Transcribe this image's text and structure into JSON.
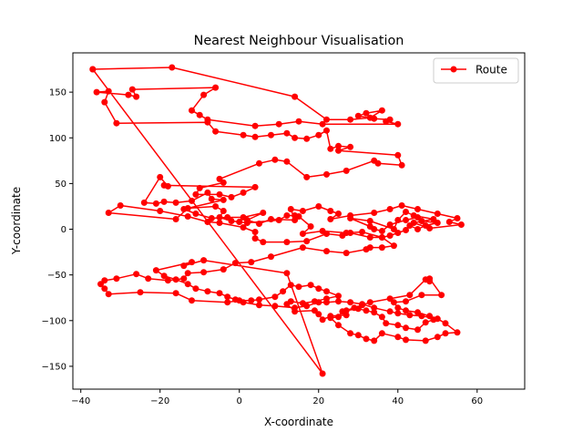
{
  "chart_data": {
    "type": "line",
    "title": "Nearest Neighbour Visualisation",
    "xlabel": "X-coordinate",
    "ylabel": "Y-coordinate",
    "xlim": [
      -42,
      72
    ],
    "ylim": [
      -175,
      193
    ],
    "xticks": [
      -40,
      -20,
      0,
      20,
      40,
      60
    ],
    "yticks": [
      -150,
      -100,
      -50,
      0,
      50,
      100,
      150
    ],
    "grid": false,
    "legend": {
      "position": "top-right",
      "entries": [
        "Route"
      ]
    },
    "series": [
      {
        "name": "Route",
        "color": "#ff0000",
        "marker": "circle",
        "points": [
          [
            -37,
            175
          ],
          [
            -17,
            177
          ],
          [
            14,
            145
          ],
          [
            22,
            120
          ],
          [
            28,
            120
          ],
          [
            33,
            122
          ],
          [
            36,
            130
          ],
          [
            32,
            127
          ],
          [
            30,
            124
          ],
          [
            34,
            121
          ],
          [
            38,
            120
          ],
          [
            37,
            118
          ],
          [
            40,
            115
          ],
          [
            21,
            115
          ],
          [
            15,
            118
          ],
          [
            10,
            115
          ],
          [
            4,
            113
          ],
          [
            -8,
            120
          ],
          [
            -10,
            125
          ],
          [
            -12,
            130
          ],
          [
            -9,
            147
          ],
          [
            -6,
            155
          ],
          [
            -27,
            153
          ],
          [
            -26,
            145
          ],
          [
            -28,
            147
          ],
          [
            -36,
            150
          ],
          [
            -33,
            151
          ],
          [
            -34,
            139
          ],
          [
            -31,
            116
          ],
          [
            -8,
            117
          ],
          [
            -6,
            107
          ],
          [
            1,
            103
          ],
          [
            4,
            101
          ],
          [
            8,
            103
          ],
          [
            12,
            105
          ],
          [
            14,
            100
          ],
          [
            17,
            99
          ],
          [
            20,
            103
          ],
          [
            22,
            108
          ],
          [
            23,
            88
          ],
          [
            25,
            91
          ],
          [
            28,
            90
          ],
          [
            25,
            86
          ],
          [
            40,
            81
          ],
          [
            41,
            70
          ],
          [
            35,
            72
          ],
          [
            34,
            75
          ],
          [
            27,
            64
          ],
          [
            22,
            60
          ],
          [
            17,
            57
          ],
          [
            12,
            74
          ],
          [
            9,
            76
          ],
          [
            5,
            72
          ],
          [
            -5,
            55
          ],
          [
            -4,
            51
          ],
          [
            -10,
            45
          ],
          [
            -11,
            38
          ],
          [
            -5,
            38
          ],
          [
            -2,
            35
          ],
          [
            1,
            40
          ],
          [
            4,
            46
          ],
          [
            -19,
            48
          ],
          [
            -18,
            47
          ],
          [
            -20,
            57
          ],
          [
            -24,
            29
          ],
          [
            -21,
            28
          ],
          [
            -19,
            30
          ],
          [
            -16,
            29
          ],
          [
            -12,
            31
          ],
          [
            -8,
            40
          ],
          [
            -7,
            33
          ],
          [
            -4,
            32
          ],
          [
            -14,
            22
          ],
          [
            -11,
            17
          ],
          [
            -7,
            12
          ],
          [
            -3,
            13
          ],
          [
            1,
            13
          ],
          [
            6,
            18
          ],
          [
            2,
            10
          ],
          [
            5,
            6
          ],
          [
            8,
            11
          ],
          [
            14,
            10
          ],
          [
            13,
            22
          ],
          [
            16,
            20
          ],
          [
            20,
            25
          ],
          [
            23,
            20
          ],
          [
            25,
            17
          ],
          [
            23,
            11
          ],
          [
            28,
            15
          ],
          [
            34,
            18
          ],
          [
            38,
            22
          ],
          [
            41,
            26
          ],
          [
            45,
            22
          ],
          [
            50,
            17
          ],
          [
            55,
            12
          ],
          [
            53,
            8
          ],
          [
            56,
            5
          ],
          [
            48,
            1
          ],
          [
            44,
            7
          ],
          [
            49,
            11
          ],
          [
            44,
            15
          ],
          [
            42,
            19
          ],
          [
            40,
            10
          ],
          [
            39,
            0
          ],
          [
            33,
            9
          ],
          [
            28,
            12
          ],
          [
            33,
            3
          ],
          [
            34,
            0
          ],
          [
            36,
            -2
          ],
          [
            38,
            5
          ],
          [
            42,
            10
          ],
          [
            45,
            13
          ],
          [
            46,
            9
          ],
          [
            50,
            7
          ],
          [
            47,
            4
          ],
          [
            45,
            0
          ],
          [
            43,
            4
          ],
          [
            42,
            -1
          ],
          [
            40,
            -4
          ],
          [
            38,
            -7
          ],
          [
            36,
            -9
          ],
          [
            33,
            -9
          ],
          [
            28,
            -4
          ],
          [
            26,
            -7
          ],
          [
            22,
            -5
          ],
          [
            17,
            -13
          ],
          [
            12,
            -14
          ],
          [
            6,
            -14
          ],
          [
            4,
            -10
          ],
          [
            4,
            -3
          ],
          [
            1,
            2
          ],
          [
            -5,
            7
          ],
          [
            -8,
            8
          ],
          [
            -13,
            14
          ],
          [
            -20,
            20
          ],
          [
            -30,
            26
          ],
          [
            -33,
            18
          ],
          [
            -16,
            11
          ],
          [
            -13,
            23
          ],
          [
            -6,
            25
          ],
          [
            -4,
            20
          ],
          [
            -5,
            13
          ],
          [
            -2,
            9
          ],
          [
            0,
            8
          ],
          [
            2,
            7
          ],
          [
            10,
            10
          ],
          [
            12,
            15
          ],
          [
            14,
            15
          ],
          [
            15,
            14
          ],
          [
            18,
            3
          ],
          [
            16,
            -5
          ],
          [
            21,
            -2
          ],
          [
            27,
            -4
          ],
          [
            31,
            -3
          ],
          [
            36,
            -9
          ],
          [
            39,
            -18
          ],
          [
            36,
            -20
          ],
          [
            33,
            -20
          ],
          [
            32,
            -22
          ],
          [
            27,
            -26
          ],
          [
            22,
            -24
          ],
          [
            16,
            -20
          ],
          [
            8,
            -30
          ],
          [
            3,
            -36
          ],
          [
            -1,
            -37
          ],
          [
            -4,
            -44
          ],
          [
            -9,
            -47
          ],
          [
            -13,
            -48
          ],
          [
            -14,
            -54
          ],
          [
            -18,
            -56
          ],
          [
            -23,
            -54
          ],
          [
            -26,
            -49
          ],
          [
            -31,
            -54
          ],
          [
            -34,
            -56
          ],
          [
            -35,
            -60
          ],
          [
            -34,
            -65
          ],
          [
            -33,
            -71
          ],
          [
            -25,
            -69
          ],
          [
            -16,
            -70
          ],
          [
            -12,
            -78
          ],
          [
            -3,
            -80
          ],
          [
            0,
            -78
          ],
          [
            3,
            -78
          ],
          [
            5,
            -77
          ],
          [
            9,
            -74
          ],
          [
            11,
            -68
          ],
          [
            13,
            -61
          ],
          [
            15,
            -63
          ],
          [
            18,
            -61
          ],
          [
            20,
            -65
          ],
          [
            22,
            -68
          ],
          [
            25,
            -73
          ],
          [
            22,
            -76
          ],
          [
            19,
            -79
          ],
          [
            16,
            -81
          ],
          [
            13,
            -79
          ],
          [
            12,
            -82
          ],
          [
            14,
            -90
          ],
          [
            19,
            -89
          ],
          [
            20,
            -93
          ],
          [
            21,
            -99
          ],
          [
            23,
            -95
          ],
          [
            27,
            -94
          ],
          [
            27,
            -89
          ],
          [
            30,
            -87
          ],
          [
            32,
            -89
          ],
          [
            34,
            -91
          ],
          [
            36,
            -96
          ],
          [
            37,
            -103
          ],
          [
            40,
            -105
          ],
          [
            42,
            -108
          ],
          [
            45,
            -110
          ],
          [
            47,
            -102
          ],
          [
            49,
            -99
          ],
          [
            48,
            -95
          ],
          [
            45,
            -91
          ],
          [
            42,
            -89
          ],
          [
            40,
            -86
          ],
          [
            39,
            -80
          ],
          [
            42,
            -79
          ],
          [
            46,
            -72
          ],
          [
            51,
            -72
          ],
          [
            48,
            -54
          ],
          [
            48,
            -57
          ],
          [
            47,
            -55
          ],
          [
            43,
            -72
          ],
          [
            38,
            -76
          ],
          [
            33,
            -80
          ],
          [
            31,
            -83
          ],
          [
            29,
            -86
          ],
          [
            26,
            -90
          ],
          [
            25,
            -96
          ],
          [
            23,
            -97
          ],
          [
            25,
            -105
          ],
          [
            28,
            -114
          ],
          [
            30,
            -116
          ],
          [
            32,
            -120
          ],
          [
            34,
            -122
          ],
          [
            36,
            -114
          ],
          [
            40,
            -118
          ],
          [
            42,
            -121
          ],
          [
            47,
            -122
          ],
          [
            50,
            -118
          ],
          [
            52,
            -114
          ],
          [
            55,
            -113
          ],
          [
            52,
            -103
          ],
          [
            50,
            -98
          ],
          [
            46,
            -95
          ],
          [
            43,
            -94
          ],
          [
            40,
            -92
          ],
          [
            38,
            -90
          ],
          [
            34,
            -86
          ],
          [
            31,
            -82
          ],
          [
            28,
            -80
          ],
          [
            25,
            -79
          ],
          [
            22,
            -80
          ],
          [
            20,
            -80
          ],
          [
            17,
            -84
          ],
          [
            14,
            -86
          ],
          [
            9,
            -84
          ],
          [
            5,
            -83
          ],
          [
            1,
            -80
          ],
          [
            -1,
            -77
          ],
          [
            -3,
            -74
          ],
          [
            -5,
            -70
          ],
          [
            -8,
            -68
          ],
          [
            -11,
            -65
          ],
          [
            -13,
            -60
          ],
          [
            -16,
            -55
          ],
          [
            -19,
            -51
          ],
          [
            -21,
            -45
          ],
          [
            -12,
            -36
          ],
          [
            -14,
            -40
          ],
          [
            -9,
            -34
          ],
          [
            12,
            -48
          ],
          [
            21,
            -158
          ],
          [
            -37,
            175
          ]
        ]
      }
    ]
  }
}
